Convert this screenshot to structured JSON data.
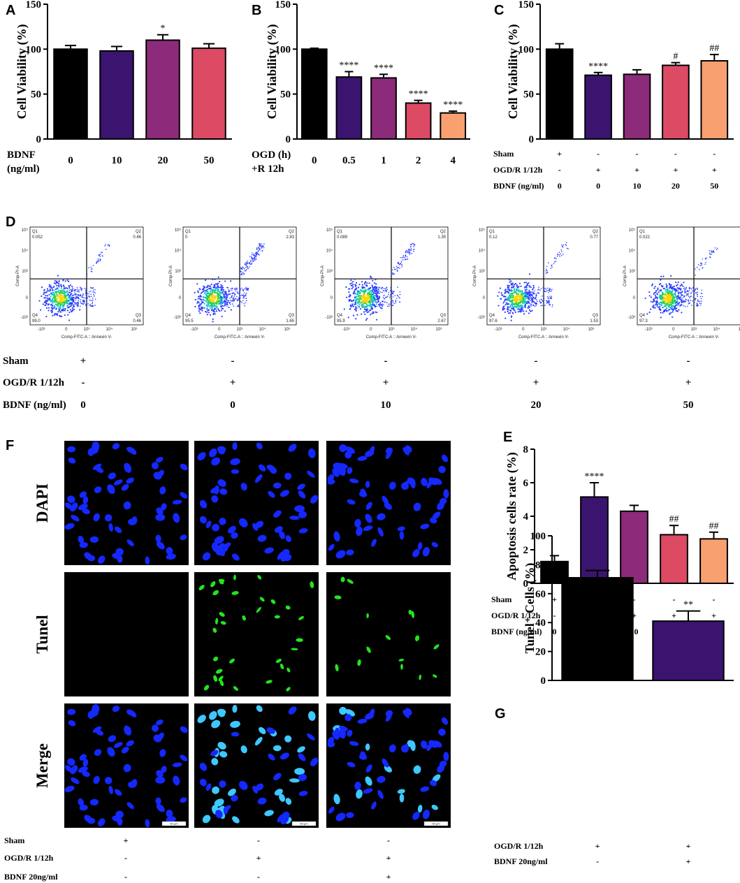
{
  "colors": {
    "black": "#000000",
    "indigo": "#3b1470",
    "purple": "#8c2b79",
    "rose": "#dc4a64",
    "peach": "#f9a071",
    "nucleus": "#1428ff",
    "tunel": "#22e51c",
    "merge": "#3ec8ff"
  },
  "panels": {
    "A": "A",
    "B": "B",
    "C": "C",
    "D": "D",
    "E": "E",
    "F": "F",
    "G": "G"
  },
  "chart_data": [
    {
      "id": "A",
      "type": "bar",
      "ylabel": "Cell Viability (%)",
      "ylim": [
        0,
        150
      ],
      "yticks": [
        "0",
        "50",
        "100",
        "150"
      ],
      "row_label": "BDNF\n(ng/ml)",
      "categories": [
        "0",
        "10",
        "20",
        "50"
      ],
      "values": [
        100,
        98,
        110,
        101
      ],
      "errors": [
        4,
        5,
        6,
        5
      ],
      "significance": [
        "",
        "",
        "*",
        ""
      ],
      "colors": [
        "#000000",
        "#3b1470",
        "#8c2b79",
        "#dc4a64"
      ]
    },
    {
      "id": "B",
      "type": "bar",
      "ylabel": "Cell Viability (%)",
      "ylim": [
        0,
        150
      ],
      "yticks": [
        "0",
        "50",
        "100",
        "150"
      ],
      "row_label": "OGD (h)\n+R 12h",
      "categories": [
        "0",
        "0.5",
        "1",
        "2",
        "4"
      ],
      "values": [
        100,
        69,
        68,
        40,
        29
      ],
      "errors": [
        1,
        6,
        4,
        3,
        2
      ],
      "significance": [
        "",
        "****",
        "****",
        "****",
        "****"
      ],
      "colors": [
        "#000000",
        "#3b1470",
        "#8c2b79",
        "#dc4a64",
        "#f9a071"
      ]
    },
    {
      "id": "C",
      "type": "bar",
      "ylabel": "Cell Viability (%)",
      "ylim": [
        0,
        150
      ],
      "yticks": [
        "0",
        "50",
        "100",
        "150"
      ],
      "conditions": [
        {
          "label": "Sham",
          "values": [
            "+",
            "-",
            "-",
            "-",
            "-"
          ]
        },
        {
          "label": "OGD/R 1/12h",
          "values": [
            "-",
            "+",
            "+",
            "+",
            "+"
          ]
        },
        {
          "label": "BDNF (ng/ml)",
          "values": [
            "0",
            "0",
            "10",
            "20",
            "50"
          ]
        }
      ],
      "values": [
        100,
        71,
        72,
        82,
        87
      ],
      "errors": [
        6,
        3,
        5,
        3,
        7
      ],
      "significance": [
        "",
        "****",
        "",
        "#",
        "##"
      ],
      "colors": [
        "#000000",
        "#3b1470",
        "#8c2b79",
        "#dc4a64",
        "#f9a071"
      ]
    },
    {
      "id": "E",
      "type": "bar",
      "ylabel": "Apoptosis cells rate (%)",
      "ylim": [
        0,
        8
      ],
      "yticks": [
        "0",
        "2",
        "4",
        "6",
        "8"
      ],
      "conditions": [
        {
          "label": "Sham",
          "values": [
            "+",
            "-",
            "-",
            "-",
            "-"
          ]
        },
        {
          "label": "OGD/R 1/12h",
          "values": [
            "-",
            "+",
            "+",
            "+",
            "+"
          ]
        },
        {
          "label": "BDNF (ng/ml)",
          "values": [
            "0",
            "0",
            "10",
            "20",
            "50"
          ]
        }
      ],
      "values": [
        1.3,
        5.15,
        4.3,
        2.9,
        2.65
      ],
      "errors": [
        0.35,
        0.85,
        0.35,
        0.55,
        0.4
      ],
      "significance": [
        "",
        "****",
        "",
        "##",
        "##"
      ],
      "colors": [
        "#000000",
        "#3b1470",
        "#8c2b79",
        "#dc4a64",
        "#f9a071"
      ]
    },
    {
      "id": "G",
      "type": "bar",
      "ylabel": "Tunel⁺ Cells (%)",
      "ylim": [
        0,
        100
      ],
      "yticks": [
        "0",
        "20",
        "40",
        "60",
        "80",
        "100"
      ],
      "conditions": [
        {
          "label": "OGD/R 1/12h",
          "values": [
            "+",
            "+"
          ]
        },
        {
          "label": "BDNF 20ng/ml",
          "values": [
            "-",
            "+"
          ]
        }
      ],
      "values": [
        71,
        41
      ],
      "errors": [
        5,
        7
      ],
      "significance": [
        "",
        "**"
      ],
      "colors": [
        "#000000",
        "#3b1470"
      ]
    }
  ],
  "flow": {
    "ylabel": "Comp-PI-A",
    "xlabel": "Comp-FITC-A :: Annexin V-",
    "yticks": [
      "10⁵",
      "10⁴",
      "10³",
      "0",
      "-10³"
    ],
    "xticks": [
      "-10³",
      "0",
      "10³",
      "10⁴",
      "10⁵"
    ],
    "plots": [
      {
        "q1": "0.052",
        "q2": "0.46",
        "q3": "0.46",
        "q4": "99.0"
      },
      {
        "q1": "0",
        "q2": "2.83",
        "q3": "1.65",
        "q4": "95.5"
      },
      {
        "q1": "0.089",
        "q2": "1.35",
        "q3": "2.67",
        "q4": "95.9"
      },
      {
        "q1": "0.12",
        "q2": "0.77",
        "q3": "1.53",
        "q4": "97.6"
      },
      {
        "q1": "0.022",
        "q2": "0.66",
        "q3": "2.01",
        "q4": "97.3"
      }
    ],
    "conditions": [
      {
        "label": "Sham",
        "values": [
          "+",
          "-",
          "-",
          "-",
          "-"
        ]
      },
      {
        "label": "OGD/R 1/12h",
        "values": [
          "-",
          "+",
          "+",
          "+",
          "+"
        ]
      },
      {
        "label": "BDNF (ng/ml)",
        "values": [
          "0",
          "0",
          "10",
          "20",
          "50"
        ]
      }
    ]
  },
  "images": {
    "rows": [
      "DAPI",
      "Tunel",
      "Merge"
    ],
    "scalebar": "50 μm",
    "conditions": [
      {
        "label": "Sham",
        "values": [
          "+",
          "-",
          "-"
        ]
      },
      {
        "label": "OGD/R 1/12h",
        "values": [
          "-",
          "+",
          "+"
        ]
      },
      {
        "label": "BDNF 20ng/ml",
        "values": [
          "-",
          "-",
          "+"
        ]
      }
    ]
  }
}
